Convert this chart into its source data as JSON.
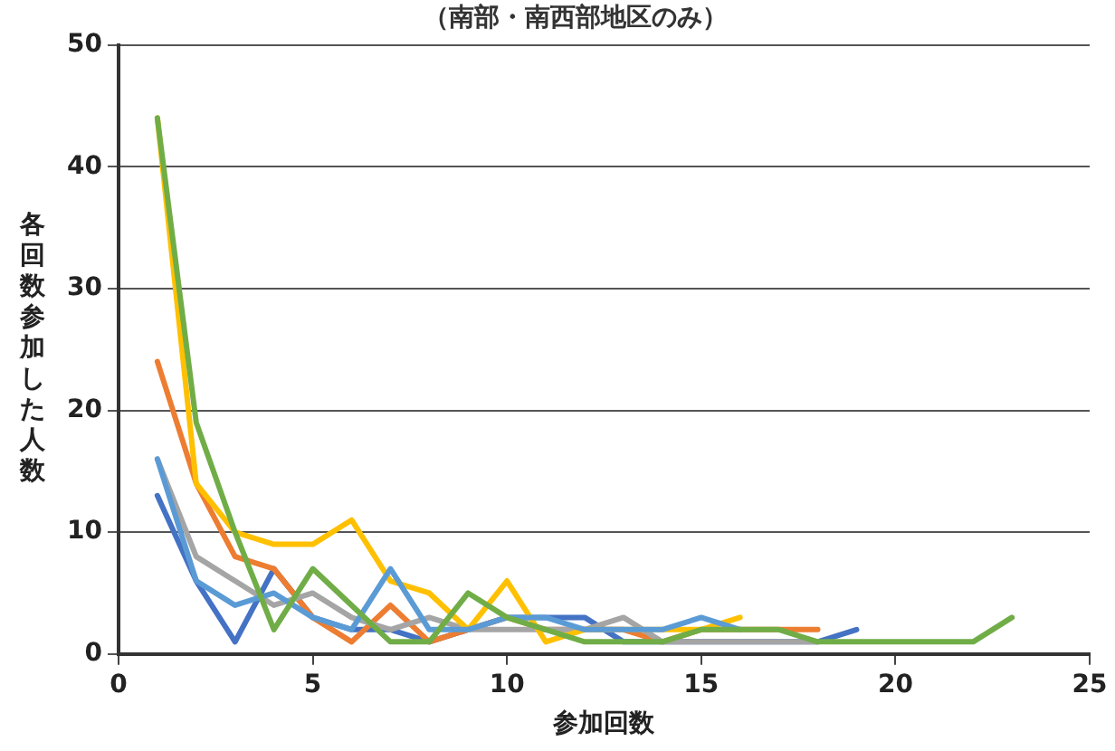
{
  "chart_data": {
    "type": "line",
    "title": "（南部・南西部地区のみ）",
    "xlabel": "参加回数",
    "ylabel": "各回数参加した人数",
    "xlim": [
      0,
      25
    ],
    "xticks": [
      0,
      5,
      10,
      15,
      20,
      25
    ],
    "ylim": [
      0,
      50
    ],
    "yticks": [
      0,
      10,
      20,
      30,
      40,
      50
    ],
    "grid": "y",
    "legend": false,
    "marker": "none",
    "series": [
      {
        "color": "#4472c4",
        "x": [
          1,
          2,
          3,
          4,
          5,
          6,
          7,
          8,
          9,
          10,
          11,
          12,
          13,
          14,
          15,
          16,
          17,
          18,
          19
        ],
        "values": [
          13,
          6,
          1,
          7,
          3,
          2,
          2,
          1,
          2,
          3,
          3,
          3,
          1,
          1,
          1,
          1,
          1,
          1,
          2
        ]
      },
      {
        "color": "#ed7d31",
        "x": [
          1,
          2,
          3,
          4,
          5,
          6,
          7,
          8,
          9,
          10,
          11,
          12,
          13,
          14,
          15,
          16,
          17,
          18
        ],
        "values": [
          24,
          14,
          8,
          7,
          3,
          1,
          4,
          1,
          2,
          3,
          2,
          2,
          2,
          1,
          2,
          2,
          2,
          2
        ]
      },
      {
        "color": "#a5a5a5",
        "x": [
          1,
          2,
          3,
          4,
          5,
          6,
          7,
          8,
          9,
          10,
          11,
          12,
          13,
          14,
          15,
          16,
          17,
          18
        ],
        "values": [
          16,
          8,
          6,
          4,
          5,
          3,
          2,
          3,
          2,
          2,
          2,
          2,
          3,
          1,
          1,
          1,
          1,
          1
        ]
      },
      {
        "color": "#ffc000",
        "x": [
          1,
          2,
          3,
          4,
          5,
          6,
          7,
          8,
          9,
          10,
          11,
          12,
          13,
          14,
          15,
          16
        ],
        "values": [
          44,
          14,
          10,
          9,
          9,
          11,
          6,
          5,
          2,
          6,
          1,
          2,
          2,
          2,
          2,
          3
        ]
      },
      {
        "color": "#5b9bd5",
        "x": [
          1,
          2,
          3,
          4,
          5,
          6,
          7,
          8,
          9,
          10,
          11,
          12,
          13,
          14,
          15,
          16
        ],
        "values": [
          16,
          6,
          4,
          5,
          3,
          2,
          7,
          2,
          2,
          3,
          3,
          2,
          2,
          2,
          3,
          2
        ]
      },
      {
        "color": "#70ad47",
        "x": [
          1,
          2,
          3,
          4,
          5,
          6,
          7,
          8,
          9,
          10,
          11,
          12,
          13,
          14,
          15,
          16,
          17,
          18,
          19,
          20,
          21,
          22,
          23
        ],
        "values": [
          44,
          19,
          10,
          2,
          7,
          4,
          1,
          1,
          5,
          3,
          2,
          1,
          1,
          1,
          2,
          2,
          2,
          1,
          1,
          1,
          1,
          1,
          3
        ]
      }
    ]
  }
}
